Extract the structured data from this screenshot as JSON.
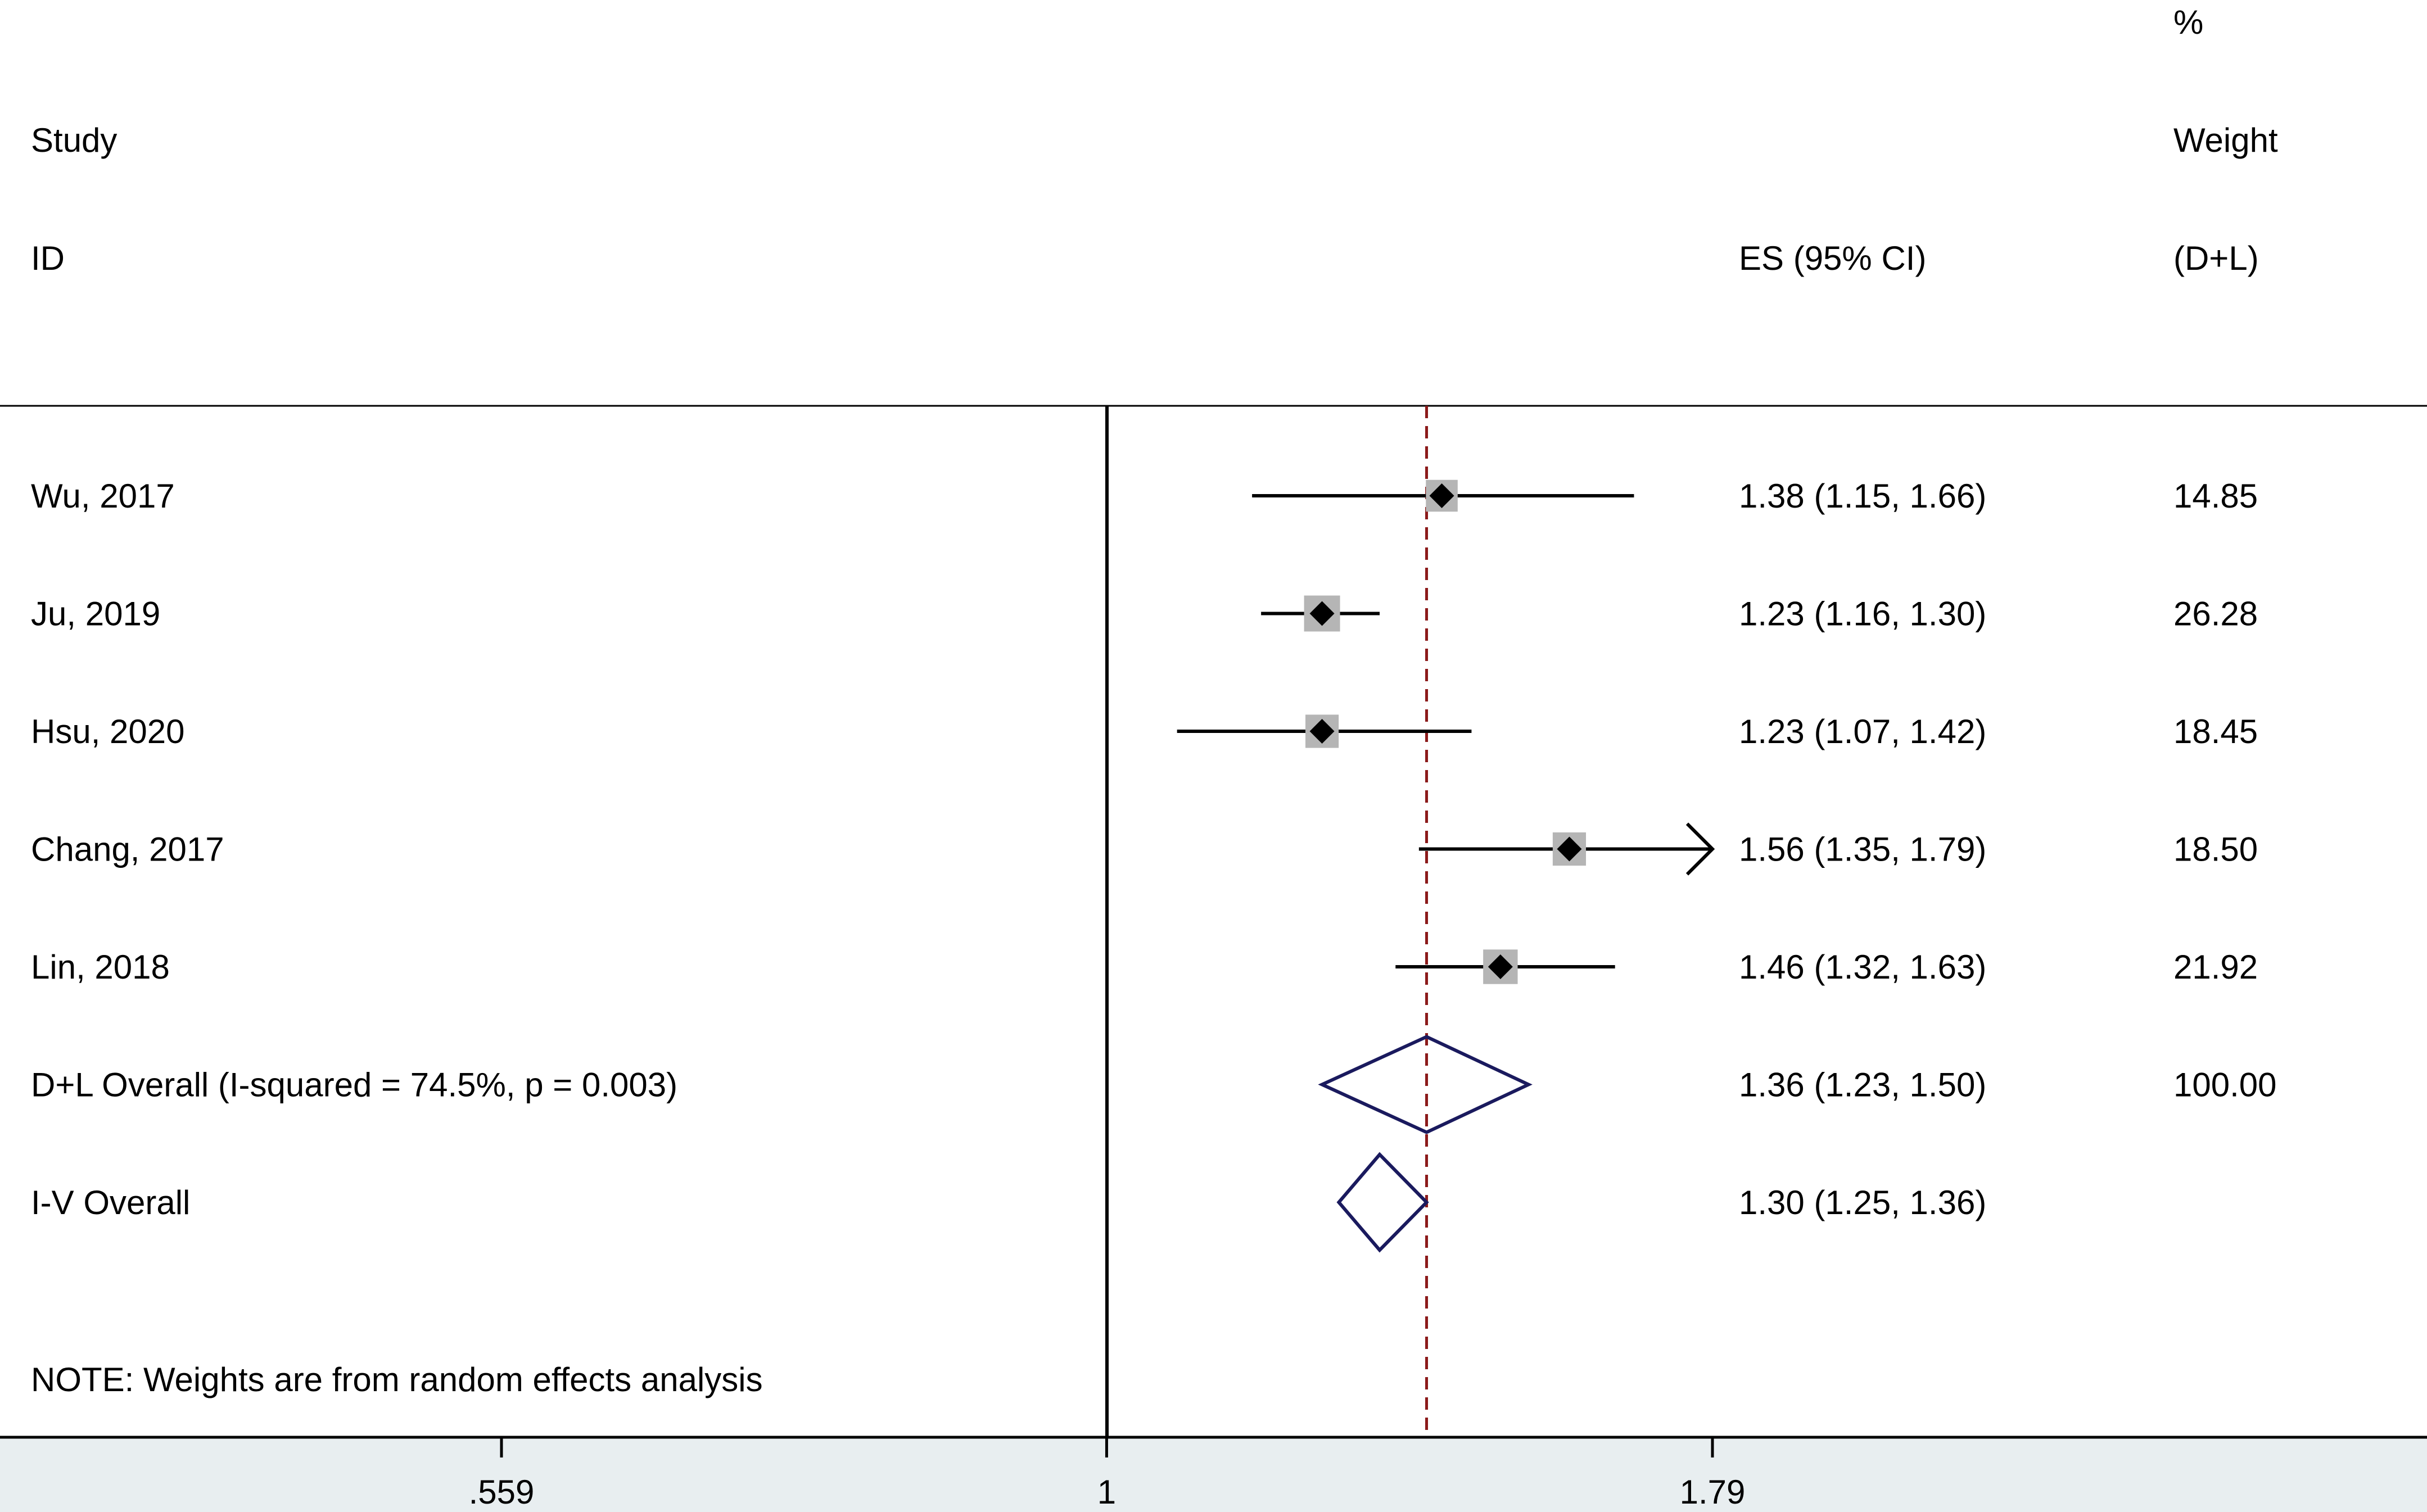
{
  "header": {
    "study_line1": "Study",
    "study_line2": "ID",
    "es_label": "ES (95% CI)",
    "weight_line1": "%",
    "weight_line2": "Weight",
    "weight_line3": "(D+L)"
  },
  "note": "NOTE: Weights are from random effects analysis",
  "colors": {
    "line": "#000000",
    "marker": "#000000",
    "weight_box": "#b5b5b5",
    "diamond": "#1a1a5e",
    "overall_line": "#8b1a1a",
    "axis_band": "#e8eef0"
  },
  "chart_data": {
    "type": "forest",
    "x_scale": "log",
    "xlim": [
      0.559,
      1.79
    ],
    "null_value": 1,
    "ticks": [
      {
        "value": 0.559,
        "label": ".559"
      },
      {
        "value": 1,
        "label": "1"
      },
      {
        "value": 1.79,
        "label": "1.79"
      }
    ],
    "studies": [
      {
        "label": "Wu, 2017",
        "es": 1.38,
        "lo": 1.15,
        "hi": 1.66,
        "ci_text": "1.38 (1.15, 1.66)",
        "weight": 14.85,
        "weight_text": "14.85"
      },
      {
        "label": "Ju, 2019",
        "es": 1.23,
        "lo": 1.16,
        "hi": 1.3,
        "ci_text": "1.23 (1.16, 1.30)",
        "weight": 26.28,
        "weight_text": "26.28"
      },
      {
        "label": "Hsu, 2020",
        "es": 1.23,
        "lo": 1.07,
        "hi": 1.42,
        "ci_text": "1.23 (1.07, 1.42)",
        "weight": 18.45,
        "weight_text": "18.45"
      },
      {
        "label": "Chang, 2017",
        "es": 1.56,
        "lo": 1.35,
        "hi": 1.79,
        "ci_text": "1.56 (1.35, 1.79)",
        "weight": 18.5,
        "weight_text": "18.50",
        "arrow_right": true
      },
      {
        "label": "Lin, 2018",
        "es": 1.46,
        "lo": 1.32,
        "hi": 1.63,
        "ci_text": "1.46 (1.32, 1.63)",
        "weight": 21.92,
        "weight_text": "21.92"
      }
    ],
    "overall": [
      {
        "label": "D+L Overall  (I-squared = 74.5%, p = 0.003)",
        "es": 1.36,
        "lo": 1.23,
        "hi": 1.5,
        "ci_text": "1.36 (1.23, 1.50)",
        "weight_text": "100.00",
        "reference_line": true
      },
      {
        "label": "I-V Overall",
        "es": 1.3,
        "lo": 1.25,
        "hi": 1.36,
        "ci_text": "1.30 (1.25, 1.36)",
        "weight_text": ""
      }
    ]
  }
}
